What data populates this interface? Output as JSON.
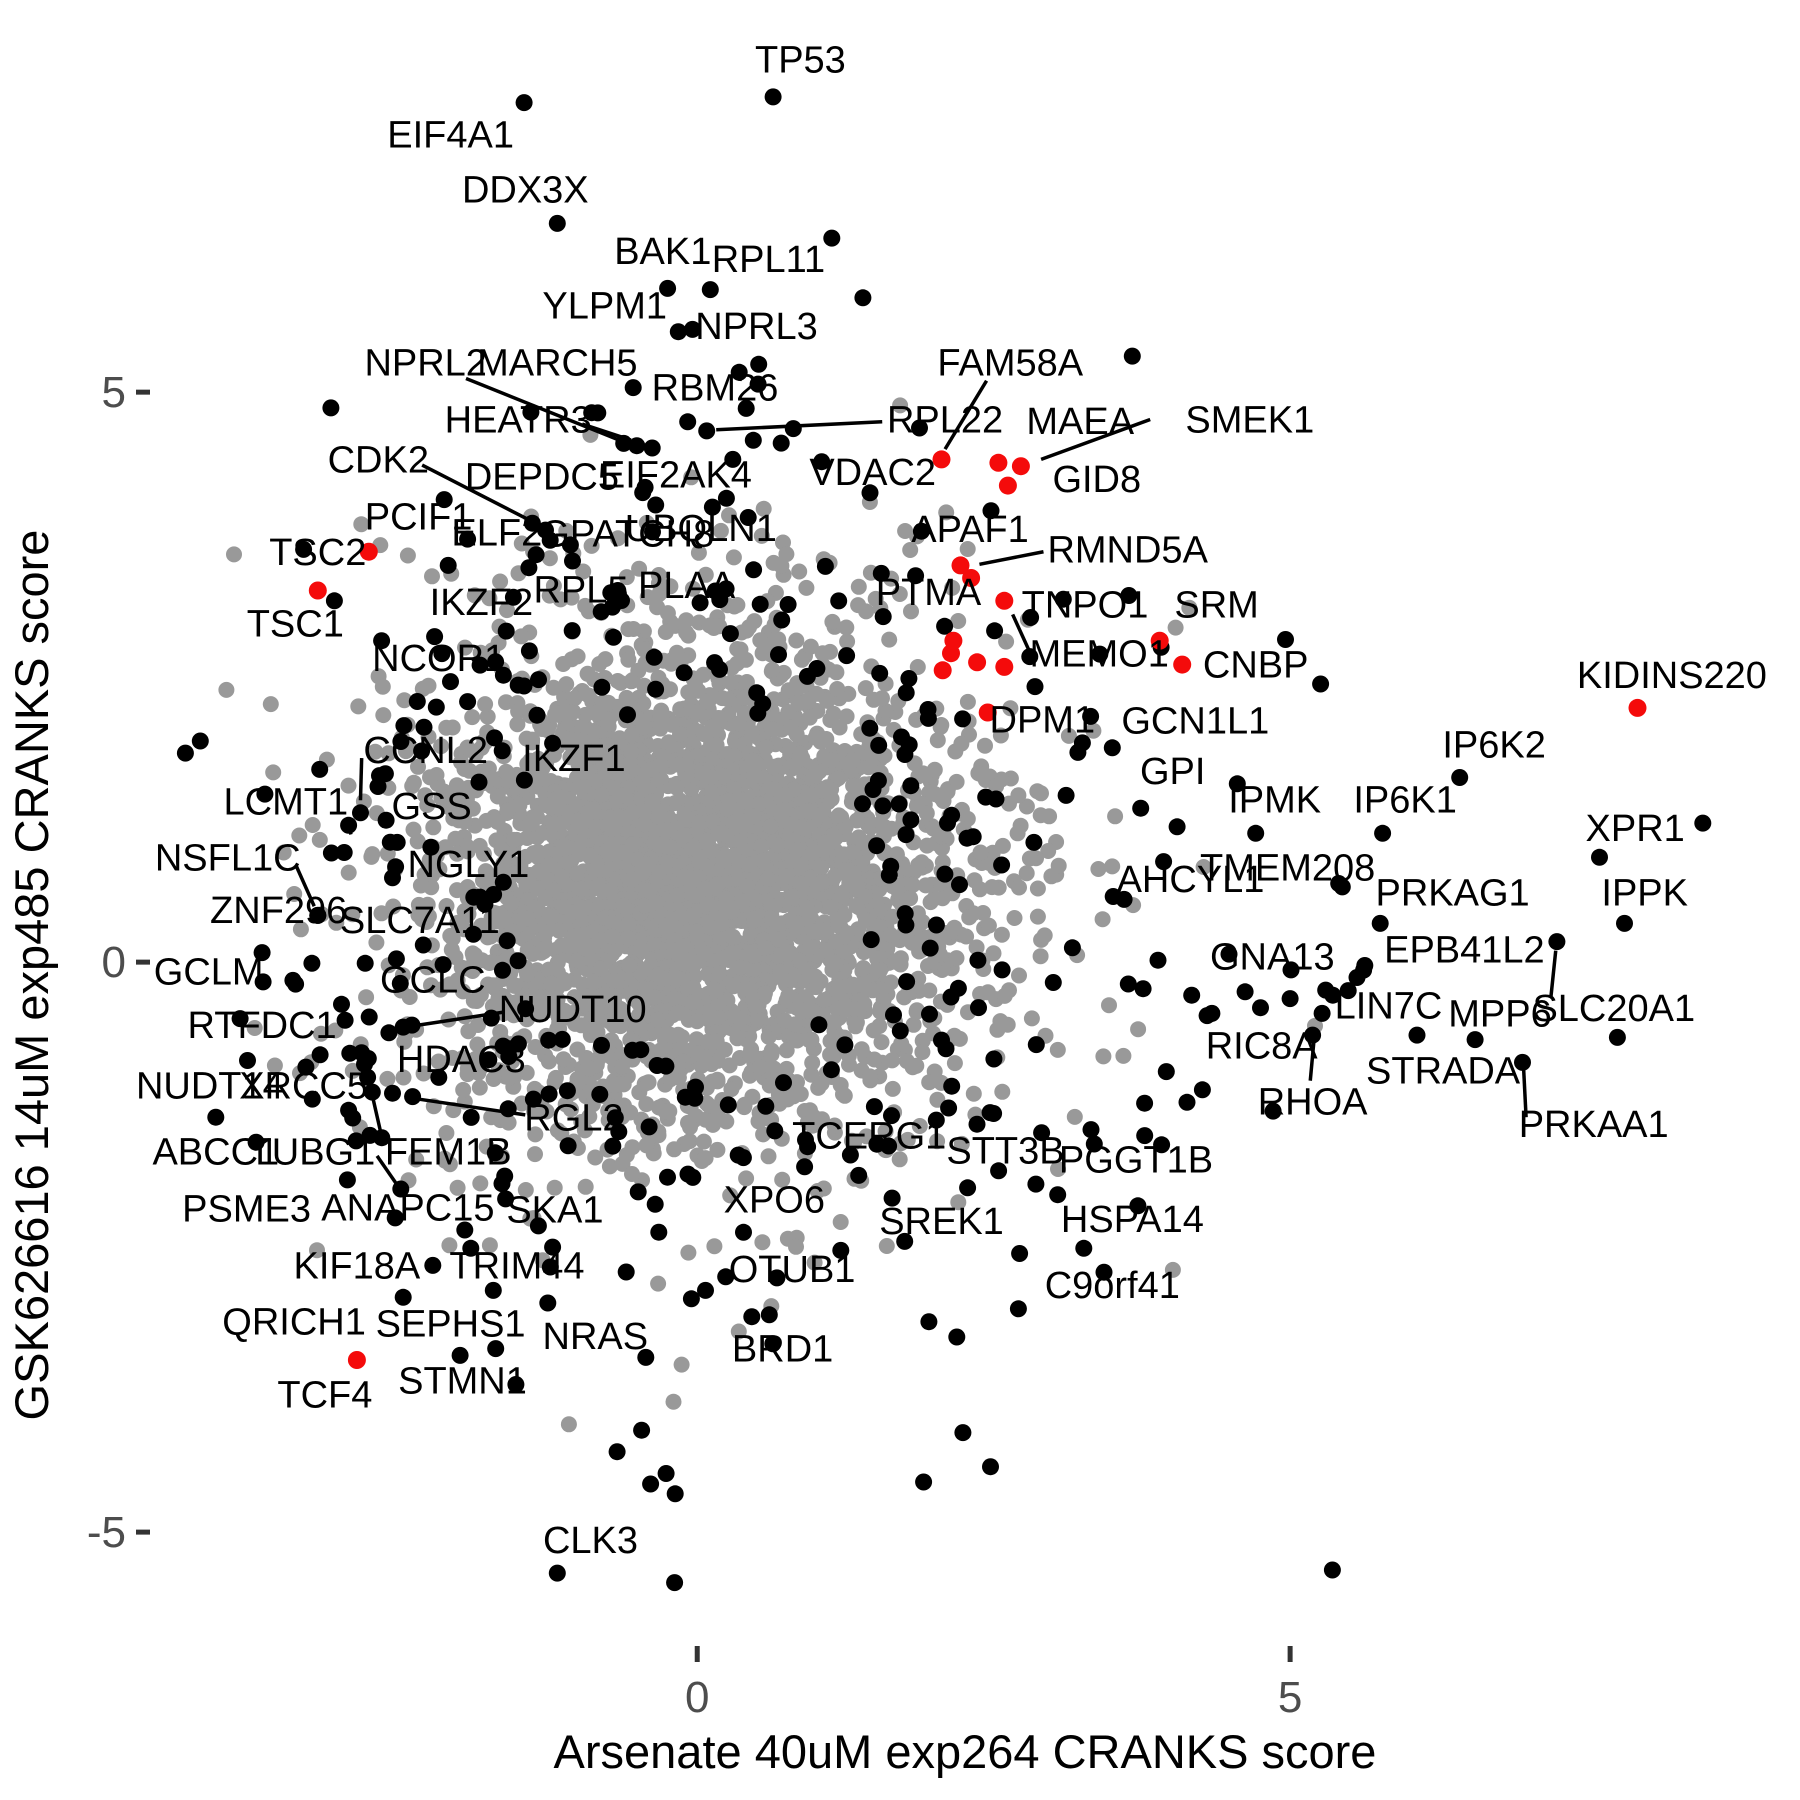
{
  "figure": {
    "background": "#ffffff"
  },
  "chart_data": {
    "type": "scatter",
    "title": "",
    "xlabel": "Arsenate 40uM exp264 CRANKS score",
    "ylabel": "GSK626616 14uM exp485 CRANKS score",
    "xlim": [
      -5.88,
      9.3
    ],
    "ylim": [
      -7.35,
      8.44
    ],
    "grid": false,
    "legend": "none",
    "x_ticks": [
      {
        "value": 0,
        "label": "0"
      },
      {
        "value": 5,
        "label": "5"
      }
    ],
    "y_ticks": [
      {
        "value": 5,
        "label": "5"
      },
      {
        "value": 0,
        "label": "0"
      },
      {
        "value": -5,
        "label": "-5"
      }
    ],
    "colors": {
      "point_black": "#000000",
      "point_gray": "#999999",
      "point_red": "#f40b0b",
      "tick_label": "#4d4d4d",
      "tick_mark": "#333333",
      "label_text": "#000000",
      "segment": "#000000"
    },
    "point_radius_px": {
      "gray": 8,
      "black": 8.5,
      "red": 9
    },
    "labeled_points": [
      {
        "gene": "TP53",
        "x": 0.64,
        "y": 7.59,
        "color": "black",
        "lx": 0.87,
        "ly": 7.91
      },
      {
        "gene": "EIF4A1",
        "x": -1.46,
        "y": 7.54,
        "color": "black",
        "lx": -2.08,
        "ly": 7.25
      },
      {
        "gene": "DDX3X",
        "x": -1.18,
        "y": 6.48,
        "color": "black",
        "lx": -1.45,
        "ly": 6.77
      },
      {
        "gene": "BAK1",
        "x": -0.25,
        "y": 5.91,
        "color": "black",
        "lx": -0.29,
        "ly": 6.23
      },
      {
        "gene": "RPL11",
        "x": 0.11,
        "y": 5.9,
        "color": "black",
        "lx": 0.6,
        "ly": 6.16
      },
      {
        "gene": "YLPM1",
        "x": -0.16,
        "y": 5.53,
        "color": "black",
        "lx": -0.78,
        "ly": 5.75
      },
      {
        "gene": "NPRL3",
        "x": -0.04,
        "y": 5.55,
        "color": "black",
        "lx": 0.5,
        "ly": 5.57
      },
      {
        "gene": "NPRL2",
        "x": -0.62,
        "y": 4.55,
        "color": "black",
        "lx": -2.29,
        "ly": 5.25,
        "line": [
          -1.95,
          5.12,
          -0.66,
          4.58
        ]
      },
      {
        "gene": "MARCH5",
        "x": -0.51,
        "y": 4.53,
        "color": "black",
        "lx": -1.18,
        "ly": 5.25
      },
      {
        "gene": "HEATR3",
        "x": -0.89,
        "y": 4.82,
        "color": "black",
        "lx": -1.51,
        "ly": 4.75,
        "line": [
          -0.97,
          4.72,
          -0.56,
          4.58
        ]
      },
      {
        "gene": "RBM26",
        "x": -0.54,
        "y": 5.04,
        "color": "black",
        "lx": 0.15,
        "ly": 5.03
      },
      {
        "gene": "RPL22",
        "x": 0.08,
        "y": 4.66,
        "color": "black",
        "lx": 2.09,
        "ly": 4.75,
        "line": [
          0.16,
          4.67,
          1.56,
          4.74
        ]
      },
      {
        "gene": "DEPDC5",
        "x": -0.38,
        "y": 4.51,
        "color": "black",
        "lx": -1.31,
        "ly": 4.25
      },
      {
        "gene": "EIF2AK4",
        "x": 0.3,
        "y": 4.41,
        "color": "black",
        "lx": -0.18,
        "ly": 4.27
      },
      {
        "gene": "VDAC2",
        "x": 1.05,
        "y": 4.39,
        "color": "black",
        "lx": 1.48,
        "ly": 4.29
      },
      {
        "gene": "CDK2",
        "x": -1.39,
        "y": 3.85,
        "color": "black",
        "lx": -2.69,
        "ly": 4.4,
        "line": [
          -2.32,
          4.36,
          -1.42,
          3.88
        ]
      },
      {
        "gene": "PCIF1",
        "x": -2.1,
        "y": 3.48,
        "color": "black",
        "lx": -2.35,
        "ly": 3.9
      },
      {
        "gene": "ELF2",
        "x": -1.42,
        "y": 3.46,
        "color": "black",
        "lx": -1.69,
        "ly": 3.76
      },
      {
        "gene": "GPATCH8",
        "x": -1.24,
        "y": 3.7,
        "color": "black",
        "lx": -0.59,
        "ly": 3.75
      },
      {
        "gene": "UBQLN1",
        "x": 0.43,
        "y": 3.9,
        "color": "black",
        "lx": 0.03,
        "ly": 3.8
      },
      {
        "gene": "IKZF2",
        "x": -1.55,
        "y": 3.2,
        "color": "black",
        "lx": -1.82,
        "ly": 3.15
      },
      {
        "gene": "RPL5",
        "x": -0.67,
        "y": 3.26,
        "color": "black",
        "lx": -0.98,
        "ly": 3.26
      },
      {
        "gene": "PLAA",
        "x": 0.19,
        "y": 3.18,
        "color": "black",
        "lx": -0.09,
        "ly": 3.3
      },
      {
        "gene": "NCOR1",
        "x": -1.51,
        "y": 2.43,
        "color": "black",
        "lx": -2.18,
        "ly": 2.66
      },
      {
        "gene": "GCN1L1",
        "x": 3.5,
        "y": 1.88,
        "color": "black",
        "lx": 4.2,
        "ly": 2.11
      },
      {
        "gene": "GPI",
        "x": 3.74,
        "y": 1.35,
        "color": "black",
        "lx": 4.01,
        "ly": 1.67
      },
      {
        "gene": "IPMK",
        "x": 4.71,
        "y": 1.13,
        "color": "black",
        "lx": 4.87,
        "ly": 1.42
      },
      {
        "gene": "IP6K1",
        "x": 5.78,
        "y": 1.13,
        "color": "black",
        "lx": 5.97,
        "ly": 1.42
      },
      {
        "gene": "IP6K2",
        "x": 6.43,
        "y": 1.62,
        "color": "black",
        "lx": 6.72,
        "ly": 1.9
      },
      {
        "gene": "XPR1",
        "x": 8.48,
        "y": 1.22,
        "color": "black",
        "lx": 7.91,
        "ly": 1.17
      },
      {
        "gene": "IPPK",
        "x": 7.82,
        "y": 0.34,
        "color": "black",
        "lx": 7.99,
        "ly": 0.6
      },
      {
        "gene": "TMEM208",
        "x": 5.41,
        "y": 0.69,
        "color": "black",
        "lx": 4.98,
        "ly": 0.82
      },
      {
        "gene": "AHCYL1",
        "x": 3.6,
        "y": 0.55,
        "color": "black",
        "lx": 4.16,
        "ly": 0.72
      },
      {
        "gene": "PRKAG1",
        "x": 5.44,
        "y": 0.66,
        "color": "black",
        "lx": 6.37,
        "ly": 0.6
      },
      {
        "gene": "EPB41L2",
        "x": 7.25,
        "y": 0.18,
        "color": "black",
        "lx": 6.47,
        "ly": 0.1,
        "line": [
          7.24,
          0.1,
          7.2,
          -0.3
        ]
      },
      {
        "gene": "GNA13",
        "x": 5.62,
        "y": -0.07,
        "color": "black",
        "lx": 4.85,
        "ly": 0.04
      },
      {
        "gene": "LIN7C",
        "x": 5.49,
        "y": -0.25,
        "color": "black",
        "lx": 5.83,
        "ly": -0.39
      },
      {
        "gene": "MPP6",
        "x": 6.56,
        "y": -0.68,
        "color": "black",
        "lx": 6.77,
        "ly": -0.46
      },
      {
        "gene": "SLC20A1",
        "x": 7.76,
        "y": -0.66,
        "color": "black",
        "lx": 7.73,
        "ly": -0.41
      },
      {
        "gene": "RIC8A",
        "x": 5.0,
        "y": -0.32,
        "color": "black",
        "lx": 4.76,
        "ly": -0.74
      },
      {
        "gene": "RHOA",
        "x": 5.19,
        "y": -0.64,
        "color": "black",
        "lx": 5.19,
        "ly": -1.23,
        "line": [
          5.2,
          -0.7,
          5.17,
          -1.04
        ]
      },
      {
        "gene": "STRADA",
        "x": 6.07,
        "y": -0.64,
        "color": "black",
        "lx": 6.29,
        "ly": -0.96
      },
      {
        "gene": "PRKAA1",
        "x": 6.96,
        "y": -0.88,
        "color": "black",
        "lx": 7.56,
        "ly": -1.43,
        "line": [
          6.97,
          -0.95,
          6.99,
          -1.36
        ]
      },
      {
        "gene": "GCLM",
        "x": -3.41,
        "y": -0.16,
        "color": "black",
        "lx": -4.12,
        "ly": -0.09
      },
      {
        "gene": "GCLC",
        "x": -2.8,
        "y": -0.01,
        "color": "black",
        "lx": -2.23,
        "ly": -0.16
      },
      {
        "gene": "RTFDC1",
        "x": -2.97,
        "y": -0.51,
        "color": "black",
        "lx": -3.67,
        "ly": -0.56
      },
      {
        "gene": "NUDT10",
        "x": -2.48,
        "y": -0.57,
        "color": "black",
        "lx": -1.05,
        "ly": -0.42,
        "line": [
          -1.64,
          -0.44,
          -2.4,
          -0.56
        ]
      },
      {
        "gene": "HDAC3",
        "x": -2.93,
        "y": -0.8,
        "color": "black",
        "lx": -1.99,
        "ly": -0.86
      },
      {
        "gene": "NUDT14",
        "x": -4.06,
        "y": -1.36,
        "color": "black",
        "lx": -4.11,
        "ly": -1.09
      },
      {
        "gene": "XRCC5",
        "x": -2.74,
        "y": -1.14,
        "color": "black",
        "lx": -3.32,
        "ly": -1.09
      },
      {
        "gene": "RGL2",
        "x": -2.4,
        "y": -1.18,
        "color": "black",
        "lx": -1.04,
        "ly": -1.37,
        "line": [
          -2.36,
          -1.2,
          -1.45,
          -1.34
        ]
      },
      {
        "gene": "ABCC1",
        "x": -3.72,
        "y": -1.58,
        "color": "black",
        "lx": -4.06,
        "ly": -1.67
      },
      {
        "gene": "TUBG1",
        "x": -2.76,
        "y": -1.52,
        "color": "black",
        "lx": -3.25,
        "ly": -1.67
      },
      {
        "gene": "FEM1B",
        "x": -2.66,
        "y": -1.54,
        "color": "black",
        "lx": -2.1,
        "ly": -1.67,
        "line": [
          -2.74,
          -1.17,
          -2.67,
          -1.49
        ]
      },
      {
        "gene": "PSME3",
        "x": -2.95,
        "y": -1.91,
        "color": "black",
        "lx": -3.8,
        "ly": -2.17
      },
      {
        "gene": "ANAPC15",
        "x": -2.5,
        "y": -1.99,
        "color": "black",
        "lx": -2.44,
        "ly": -2.16,
        "line": [
          -2.7,
          -1.7,
          -2.52,
          -1.97
        ]
      },
      {
        "gene": "SKA1",
        "x": -1.22,
        "y": -2.5,
        "color": "black",
        "lx": -1.2,
        "ly": -2.18
      },
      {
        "gene": "KIF18A",
        "x": -2.23,
        "y": -2.66,
        "color": "black",
        "lx": -2.87,
        "ly": -2.67
      },
      {
        "gene": "TRIM44",
        "x": -1.72,
        "y": -2.88,
        "color": "black",
        "lx": -1.52,
        "ly": -2.67
      },
      {
        "gene": "QRICH1",
        "x": -2.48,
        "y": -2.94,
        "color": "black",
        "lx": -3.4,
        "ly": -3.16
      },
      {
        "gene": "SEPHS1",
        "x": -1.7,
        "y": -3.39,
        "color": "black",
        "lx": -2.08,
        "ly": -3.18
      },
      {
        "gene": "NRAS",
        "x": -1.26,
        "y": -2.99,
        "color": "black",
        "lx": -0.86,
        "ly": -3.29
      },
      {
        "gene": "STMN1",
        "x": -2.0,
        "y": -3.45,
        "color": "black",
        "lx": -1.98,
        "ly": -3.68
      },
      {
        "gene": "TCERG1",
        "x": 2.12,
        "y": -1.28,
        "color": "black",
        "lx": 1.45,
        "ly": -1.53
      },
      {
        "gene": "STT3B",
        "x": 2.28,
        "y": -1.98,
        "color": "black",
        "lx": 2.6,
        "ly": -1.66
      },
      {
        "gene": "PGGT1B",
        "x": 3.04,
        "y": -2.04,
        "color": "black",
        "lx": 3.7,
        "ly": -1.74
      },
      {
        "gene": "XPO6",
        "x": 0.39,
        "y": -2.37,
        "color": "black",
        "lx": 0.65,
        "ly": -2.09
      },
      {
        "gene": "SREK1",
        "x": 1.75,
        "y": -2.45,
        "color": "black",
        "lx": 2.06,
        "ly": -2.28
      },
      {
        "gene": "HSPA14",
        "x": 3.26,
        "y": -2.51,
        "color": "black",
        "lx": 3.67,
        "ly": -2.26
      },
      {
        "gene": "OTUB1",
        "x": 0.24,
        "y": -2.76,
        "color": "black",
        "lx": 0.8,
        "ly": -2.7
      },
      {
        "gene": "C9orf41",
        "x": 3.43,
        "y": -2.72,
        "color": "black",
        "lx": 3.5,
        "ly": -2.84
      },
      {
        "gene": "BRD1",
        "x": 0.46,
        "y": -3.11,
        "color": "black",
        "lx": 0.72,
        "ly": -3.4
      },
      {
        "gene": "CLK3",
        "x": -1.18,
        "y": -5.36,
        "color": "black",
        "lx": -0.9,
        "ly": -5.08
      },
      {
        "gene": "ZNF296",
        "x": -3.2,
        "y": 0.41,
        "color": "black",
        "lx": -3.53,
        "ly": 0.45
      },
      {
        "gene": "NSFL1C",
        "x": -3.2,
        "y": 0.41,
        "color": "black",
        "lx": -3.96,
        "ly": 0.91,
        "line": [
          -3.38,
          0.84,
          -3.23,
          0.49
        ]
      },
      {
        "gene": "LCMT1",
        "x": -2.94,
        "y": 1.2,
        "color": "black",
        "lx": -3.47,
        "ly": 1.4,
        "line": [
          -2.96,
          1.27,
          -2.92,
          1.12
        ]
      },
      {
        "gene": "CCNL2",
        "x": -2.84,
        "y": 1.31,
        "color": "black",
        "lx": -2.29,
        "ly": 1.85,
        "line": [
          -2.83,
          1.79,
          -2.84,
          1.42
        ]
      },
      {
        "gene": "GSS",
        "x": -2.53,
        "y": 1.05,
        "color": "black",
        "lx": -2.24,
        "ly": 1.36
      },
      {
        "gene": "NGLY1",
        "x": -2.57,
        "y": 0.74,
        "color": "black",
        "lx": -1.93,
        "ly": 0.85
      },
      {
        "gene": "SLC7A11",
        "x": -2.31,
        "y": 0.15,
        "color": "black",
        "lx": -2.34,
        "ly": 0.36
      },
      {
        "gene": "IKZF1",
        "x": -1.22,
        "y": 1.92,
        "color": "black",
        "lx": -1.04,
        "ly": 1.78
      },
      {
        "gene": "TSC2",
        "x": -2.77,
        "y": 3.6,
        "color": "red",
        "lx": -3.2,
        "ly": 3.59
      },
      {
        "gene": "TSC1",
        "x": -3.2,
        "y": 3.26,
        "color": "red",
        "lx": -3.39,
        "ly": 2.96
      },
      {
        "gene": "FAM58A",
        "x": 2.06,
        "y": 4.41,
        "color": "red",
        "lx": 2.64,
        "ly": 5.25,
        "line": [
          2.44,
          5.1,
          2.09,
          4.5
        ]
      },
      {
        "gene": "MAEA",
        "x": 2.54,
        "y": 4.38,
        "color": "red",
        "lx": 3.23,
        "ly": 4.74
      },
      {
        "gene": "SMEK1",
        "x": 2.73,
        "y": 4.35,
        "color": "red",
        "lx": 4.66,
        "ly": 4.75,
        "line": [
          3.82,
          4.76,
          2.9,
          4.41
        ]
      },
      {
        "gene": "GID8",
        "x": 2.62,
        "y": 4.18,
        "color": "red",
        "lx": 3.37,
        "ly": 4.23
      },
      {
        "gene": "APAF1",
        "x": 2.22,
        "y": 3.48,
        "color": "red",
        "lx": 2.3,
        "ly": 3.79
      },
      {
        "gene": "RMND5A",
        "x": 2.31,
        "y": 3.37,
        "color": "red",
        "lx": 3.63,
        "ly": 3.61,
        "line": [
          2.38,
          3.49,
          2.92,
          3.6
        ]
      },
      {
        "gene": "PTMA",
        "x": 2.16,
        "y": 2.82,
        "color": "red",
        "lx": 1.95,
        "ly": 3.24
      },
      {
        "gene": "TNPO1",
        "x": 2.59,
        "y": 3.17,
        "color": "red",
        "lx": 3.27,
        "ly": 3.13,
        "line": [
          2.66,
          3.05,
          2.8,
          2.73
        ]
      },
      {
        "gene": "MEMO1",
        "x": 2.59,
        "y": 2.59,
        "color": "red",
        "lx": 3.39,
        "ly": 2.7
      },
      {
        "gene": "SRM",
        "x": 3.9,
        "y": 2.82,
        "color": "red",
        "lx": 4.38,
        "ly": 3.13
      },
      {
        "gene": "CNBP",
        "x": 4.09,
        "y": 2.61,
        "color": "red",
        "lx": 4.71,
        "ly": 2.6
      },
      {
        "gene": "DPM1",
        "x": 2.45,
        "y": 2.19,
        "color": "red",
        "lx": 2.91,
        "ly": 2.12
      },
      {
        "gene": "KIDINS220",
        "x": 7.93,
        "y": 2.23,
        "color": "red",
        "lx": 8.22,
        "ly": 2.51
      },
      {
        "gene": "TCF4",
        "x": -2.87,
        "y": -3.49,
        "color": "red",
        "lx": -3.14,
        "ly": -3.8
      }
    ],
    "extra_red_points": [
      [
        2.14,
        2.71
      ],
      [
        2.07,
        2.56
      ],
      [
        2.36,
        2.63
      ]
    ],
    "extra_black_points": [
      [
        -0.08,
        4.74
      ],
      [
        0.81,
        4.68
      ],
      [
        -0.35,
        4.01
      ],
      [
        -1.28,
        3.79
      ],
      [
        -1.07,
        3.66
      ],
      [
        2.47,
        -1.32
      ],
      [
        4.13,
        -1.23
      ],
      [
        -1.96,
        -2.35
      ],
      [
        -1.91,
        -2.51
      ],
      [
        0.07,
        -2.88
      ],
      [
        5.76,
        0.34
      ],
      [
        5.63,
        -0.03
      ],
      [
        4.26,
        -1.12
      ],
      [
        5.36,
        -0.29
      ],
      [
        5.27,
        -0.45
      ],
      [
        4.62,
        -0.26
      ],
      [
        4.75,
        -0.4
      ],
      [
        4.34,
        -0.45
      ],
      [
        4.17,
        -0.29
      ],
      [
        3.21,
        1.84
      ],
      [
        -3.25,
        -0.01
      ],
      [
        -3.0,
        -0.37
      ],
      [
        -2.6,
        -0.62
      ],
      [
        -2.78,
        -1.01
      ],
      [
        -2.57,
        -1.15
      ],
      [
        -2.94,
        -1.3
      ]
    ],
    "background_cloud": {
      "description": "dense unlabeled gene cloud",
      "seed": 42,
      "gray_core": {
        "n": 2800,
        "cx": -0.05,
        "cy": 0.7,
        "sx": 1.05,
        "sy": 1.0
      },
      "gray_fringe": {
        "n": 800,
        "cx": -0.05,
        "cy": 0.7,
        "sx": 1.55,
        "sy": 1.45
      },
      "black_ring": {
        "n": 300,
        "cx": 0.2,
        "cy": 0.5,
        "sx": 2.15,
        "sy": 2.0,
        "core_rx": 1.58,
        "core_ry": 1.52,
        "core_cx": -0.05,
        "core_cy": 0.7
      }
    }
  }
}
